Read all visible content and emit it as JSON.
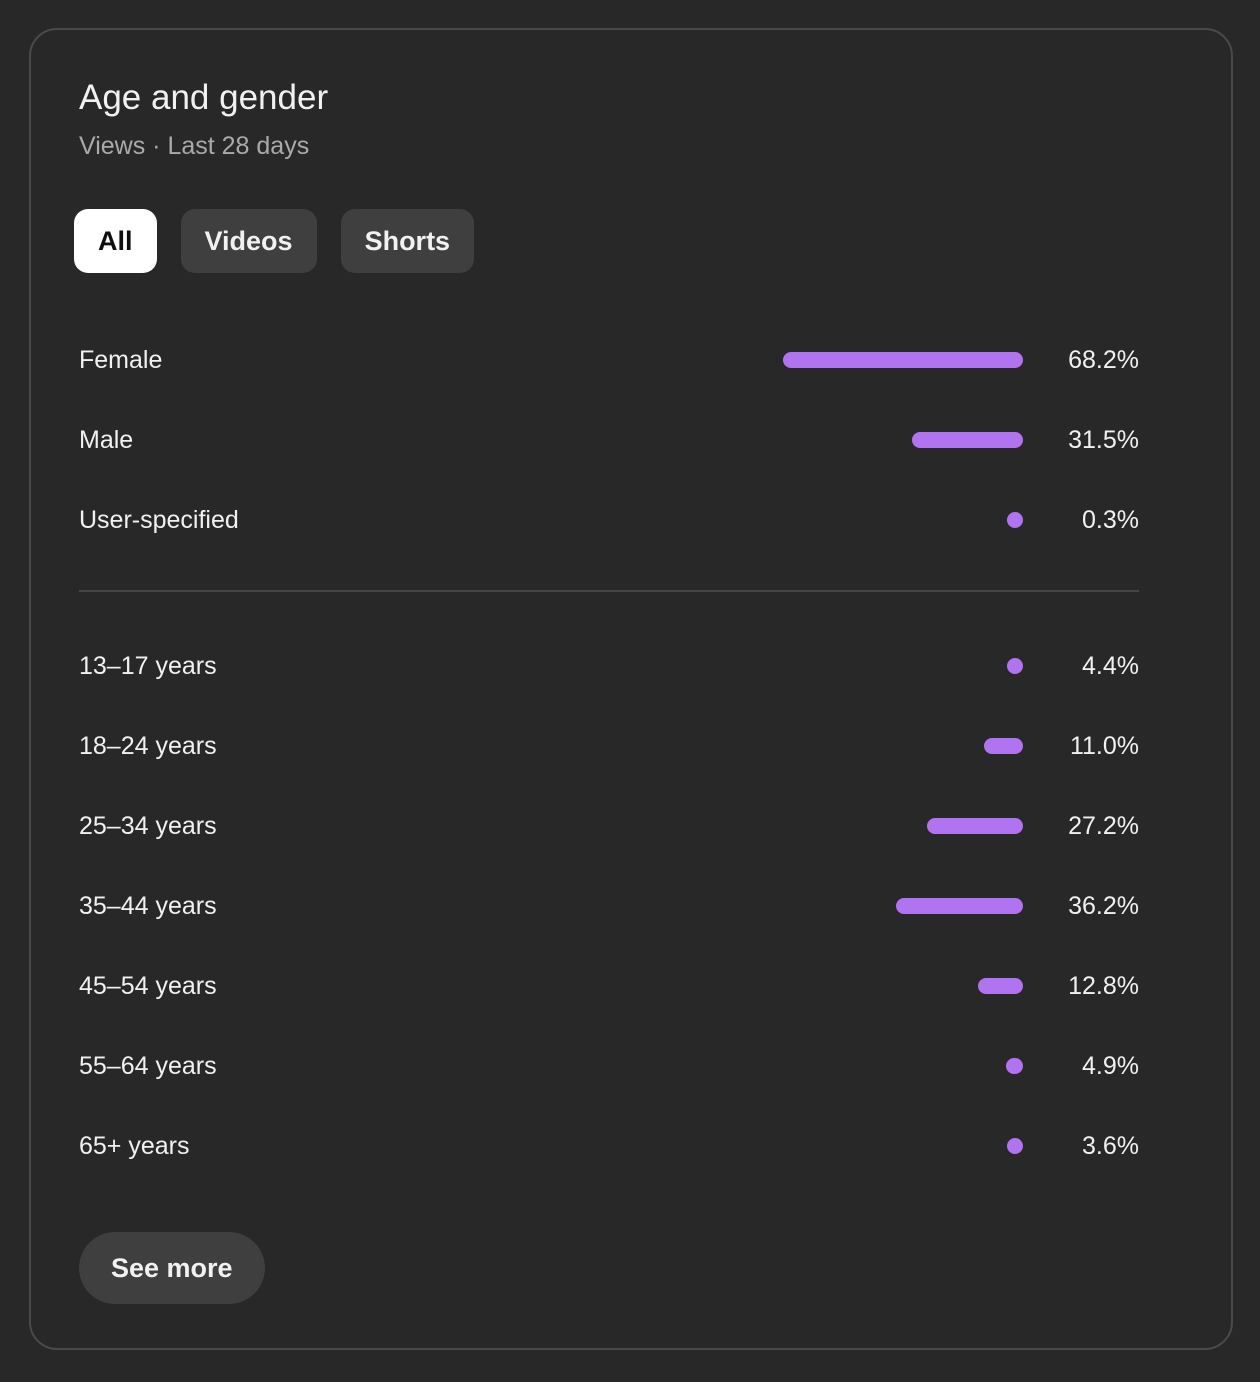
{
  "card": {
    "title": "Age and gender",
    "subtitle": "Views · Last 28 days"
  },
  "chips": [
    {
      "label": "All",
      "active": true
    },
    {
      "label": "Videos",
      "active": false
    },
    {
      "label": "Shorts",
      "active": false
    }
  ],
  "gender": [
    {
      "label": "Female",
      "value": "68.2%",
      "percent": 68.2
    },
    {
      "label": "Male",
      "value": "31.5%",
      "percent": 31.5
    },
    {
      "label": "User-specified",
      "value": "0.3%",
      "percent": 0.3
    }
  ],
  "age": [
    {
      "label": "13–17 years",
      "value": "4.4%",
      "percent": 4.4
    },
    {
      "label": "18–24 years",
      "value": "11.0%",
      "percent": 11.0
    },
    {
      "label": "25–34 years",
      "value": "27.2%",
      "percent": 27.2
    },
    {
      "label": "35–44 years",
      "value": "36.2%",
      "percent": 36.2
    },
    {
      "label": "45–54 years",
      "value": "12.8%",
      "percent": 12.8
    },
    {
      "label": "55–64 years",
      "value": "4.9%",
      "percent": 4.9
    },
    {
      "label": "65+ years",
      "value": "3.6%",
      "percent": 3.6
    }
  ],
  "see_more_label": "See more",
  "colors": {
    "bar": "#b074f0",
    "background": "#282828"
  }
}
